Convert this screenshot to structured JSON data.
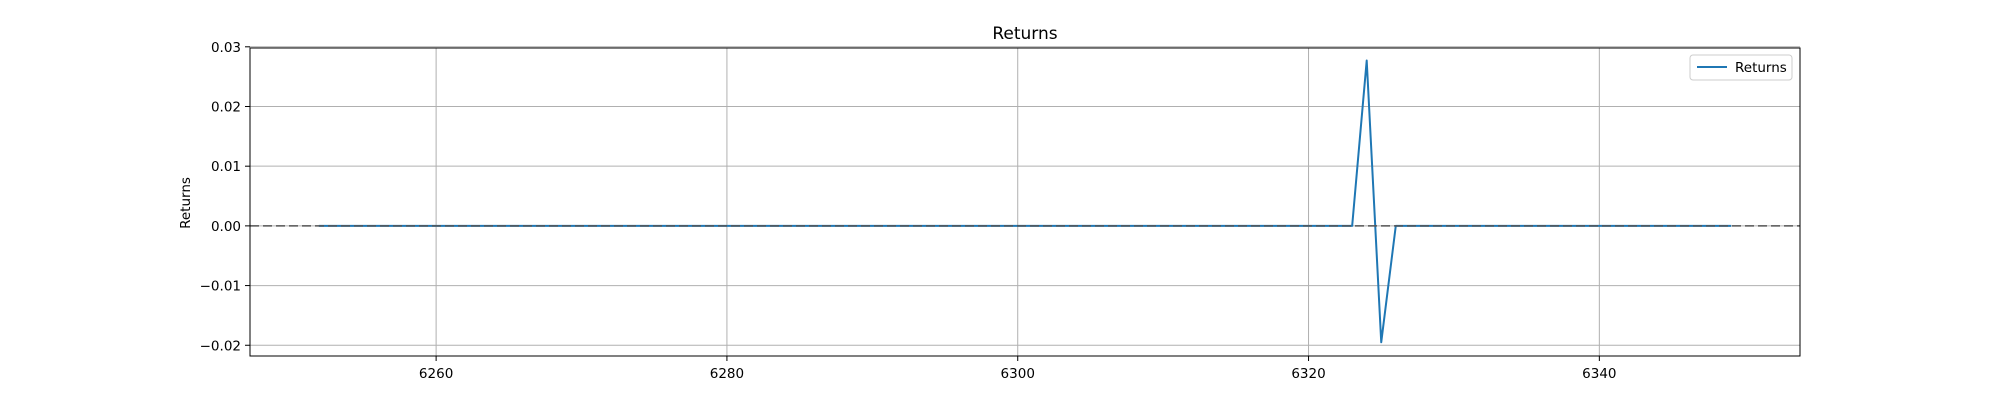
{
  "chart_data": {
    "type": "line",
    "title": "Returns",
    "xlabel": "",
    "ylabel": "Returns",
    "xlim": [
      6247.2,
      6353.8
    ],
    "ylim": [
      -0.0218,
      0.0298
    ],
    "x_ticks": [
      6260,
      6280,
      6300,
      6320,
      6340
    ],
    "x_tick_labels": [
      "6260",
      "6280",
      "6300",
      "6320",
      "6340"
    ],
    "y_ticks": [
      0.03,
      0.02,
      0.01,
      0.0,
      -0.01,
      -0.02
    ],
    "y_tick_labels": [
      "0.03",
      "0.02",
      "0.01",
      "0.00",
      "−0.01",
      "−0.02"
    ],
    "grid": true,
    "legend_position": "top-right",
    "series": [
      {
        "name": "Returns",
        "color": "#1f77b4",
        "x": [
          6252,
          6323,
          6324,
          6325,
          6326,
          6349
        ],
        "y": [
          0.0,
          0.0,
          0.0277,
          -0.0195,
          0.0,
          0.0
        ]
      }
    ],
    "reference_line": {
      "y": 0.0,
      "style": "dashed",
      "color": "#555555"
    }
  }
}
